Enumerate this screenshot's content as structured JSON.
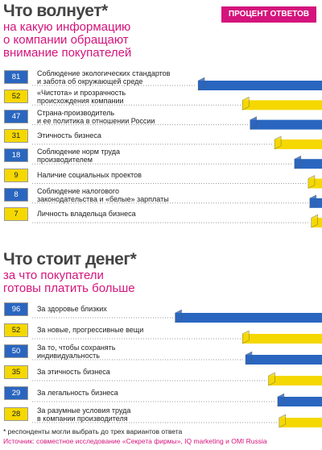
{
  "badge": "ПРОЦЕНТ ОТВЕТОВ",
  "chart_data": [
    {
      "type": "bar",
      "title": "Что волнует*",
      "subtitle": "на какую информацию\nо компании обращают\nвнимание покупателей",
      "categories": [
        "Соблюдение экологических стандартов\nи забота об окружающей среде",
        "«Чистота» и прозрачность\nпроисхождения компании",
        "Страна-производитель\nи ее политика в отношении России",
        "Этичность бизнеса",
        "Соблюдение норм труда\nпроизводителем",
        "Наличие социальных проектов",
        "Соблюдение налогового\nзаконодательства и «белые» зарплаты",
        "Личность владельца бизнеса"
      ],
      "values": [
        81,
        52,
        47,
        31,
        18,
        9,
        8,
        7
      ],
      "colors": [
        "#2a66c0",
        "#f5d800",
        "#2a66c0",
        "#f5d800",
        "#2a66c0",
        "#f5d800",
        "#2a66c0",
        "#f5d800"
      ],
      "xlim": [
        0,
        100
      ]
    },
    {
      "type": "bar",
      "title": "Что стоит денег*",
      "subtitle": "за что покупатели\nготовы платить больше",
      "categories": [
        "За здоровье близких",
        "За новые, прогрессивные вещи",
        "За то, чтобы сохранять\nиндивидуальность",
        "За этичность бизнеса",
        "За легальность бизнеса",
        "За разумные условия труда\nв компании производителя"
      ],
      "values": [
        96,
        52,
        50,
        35,
        29,
        28
      ],
      "colors": [
        "#2a66c0",
        "#f5d800",
        "#2a66c0",
        "#f5d800",
        "#2a66c0",
        "#f5d800"
      ],
      "xlim": [
        0,
        100
      ]
    }
  ],
  "footnote": "* респонденты могли выбрать до трех вариантов ответа",
  "source": "Источник: совместное исследование «Секрета фирмы», IQ marketing и OMI Russia"
}
